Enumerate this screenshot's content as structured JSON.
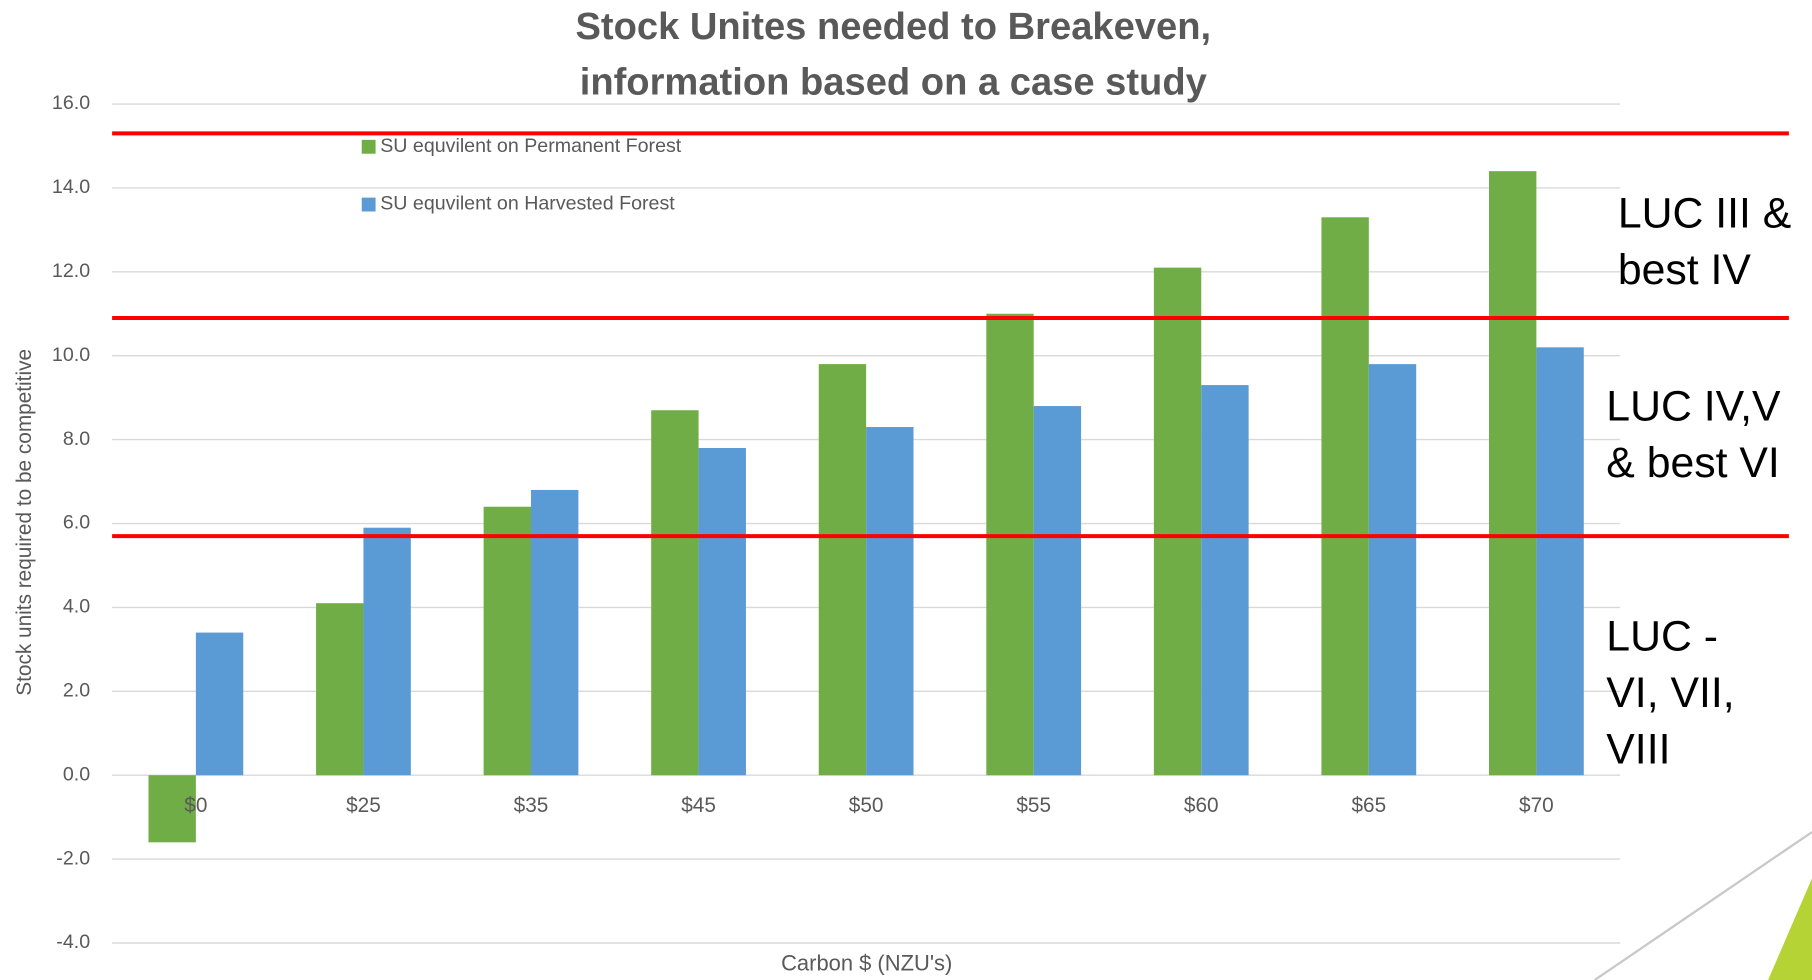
{
  "chart_data": {
    "type": "bar",
    "title": [
      "Stock Unites needed to Breakeven,",
      "information based on a case study"
    ],
    "x_label": "Carbon $ (NZU's)",
    "y_label": "Stock units required to be competitive",
    "categories": [
      "$0",
      "$25",
      "$35",
      "$45",
      "$50",
      "$55",
      "$60",
      "$65",
      "$70"
    ],
    "series": [
      {
        "name": "SU equvilent on Permanent Forest",
        "color": "#70ad47",
        "values": [
          -1.6,
          4.1,
          6.4,
          8.7,
          9.8,
          11.0,
          12.1,
          13.3,
          14.4
        ]
      },
      {
        "name": "SU equvilent on Harvested Forest",
        "color": "#5b9bd5",
        "values": [
          3.4,
          5.9,
          6.8,
          7.8,
          8.3,
          8.8,
          9.3,
          9.8,
          10.2
        ]
      }
    ],
    "ylim": [
      -4,
      16
    ],
    "yticks": [
      {
        "value": -4,
        "label": "-4.0"
      },
      {
        "value": -2,
        "label": "-2.0"
      },
      {
        "value": 0,
        "label": "0.0"
      },
      {
        "value": 2,
        "label": "2.0"
      },
      {
        "value": 4,
        "label": "4.0"
      },
      {
        "value": 6,
        "label": "6.0"
      },
      {
        "value": 8,
        "label": "8.0"
      },
      {
        "value": 10,
        "label": "10.0"
      },
      {
        "value": 12,
        "label": "12.0"
      },
      {
        "value": 14,
        "label": "14.0"
      },
      {
        "value": 16,
        "label": "16.0"
      }
    ],
    "grid": true,
    "reference_lines": {
      "color": "#ff0000",
      "values": [
        15.3,
        10.9,
        5.7
      ]
    },
    "annotations": [
      {
        "lines": [
          "LUC III &",
          "best IV"
        ]
      },
      {
        "lines": [
          "LUC IV,V",
          "& best VI"
        ]
      },
      {
        "lines": [
          "LUC -",
          "VI, VII,",
          "VIII"
        ]
      }
    ]
  }
}
